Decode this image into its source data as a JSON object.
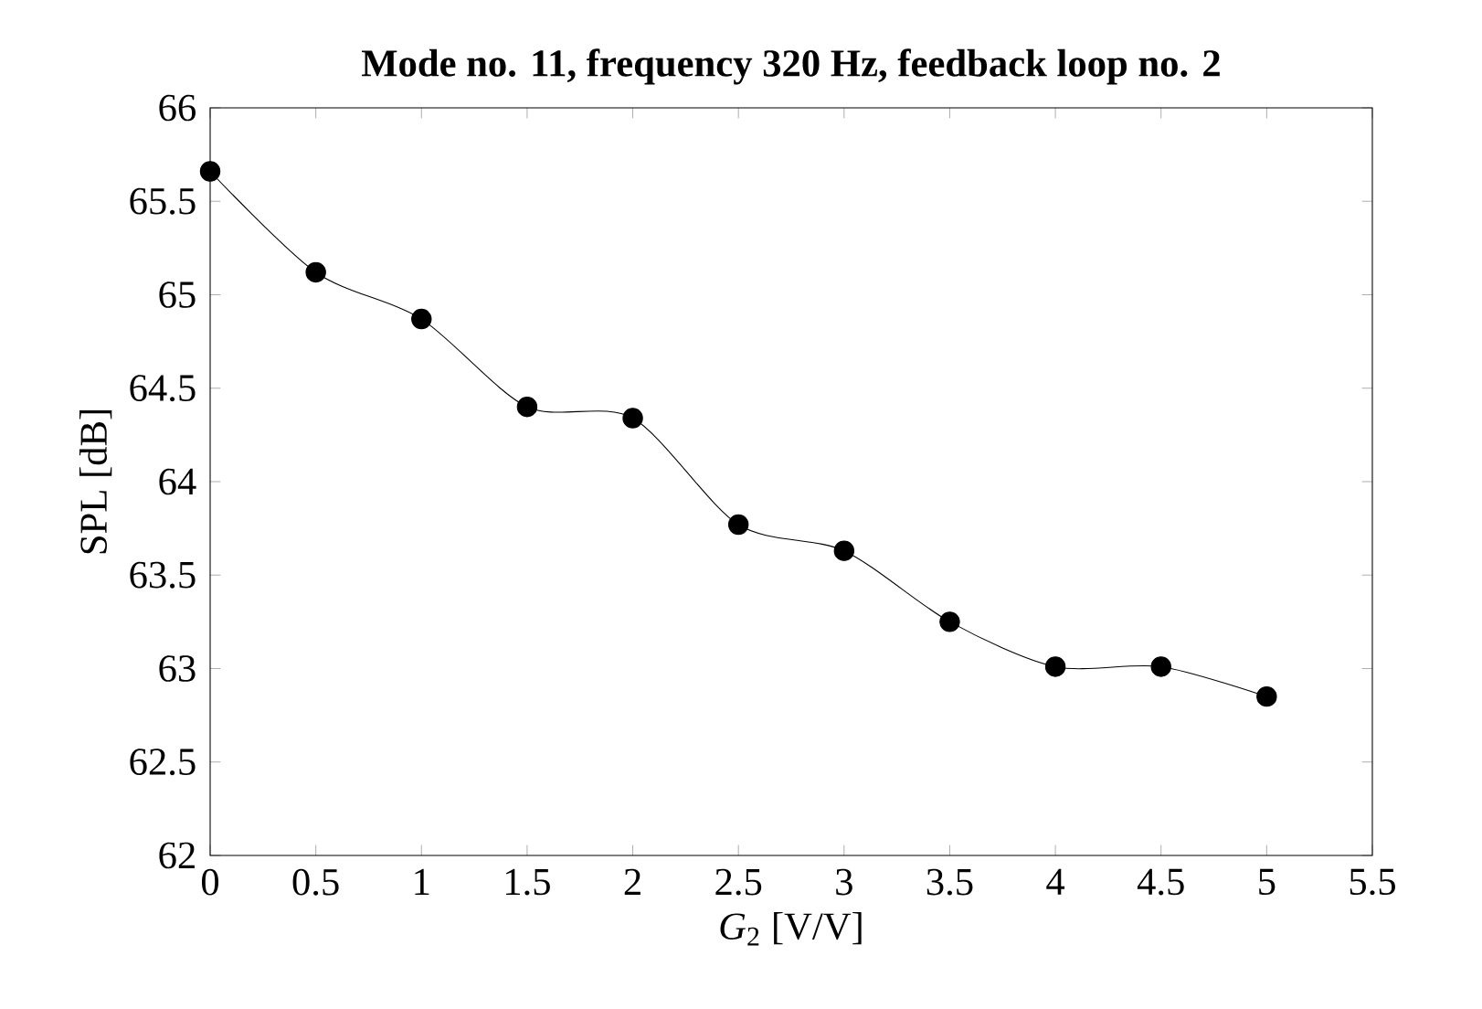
{
  "chart_data": {
    "type": "line",
    "title": "Mode no. 11, frequency 320 Hz, feedback loop no. 2",
    "xlabel": "*G*$_{2}$ [V/V]",
    "ylabel": "SPL [dB]",
    "x": [
      0,
      0.5,
      1,
      1.5,
      2,
      2.5,
      3,
      3.5,
      4,
      4.5,
      5
    ],
    "series": [
      {
        "color": "#000000",
        "values": [
          65.66,
          65.12,
          64.87,
          64.4,
          64.34,
          63.77,
          63.63,
          63.25,
          63.01,
          63.01,
          62.85
        ]
      }
    ],
    "xlim": [
      0,
      5.5
    ],
    "ylim": [
      62,
      66
    ],
    "xticks": [
      0,
      0.5,
      1,
      1.5,
      2,
      2.5,
      3,
      3.5,
      4,
      4.5,
      5,
      5.5
    ],
    "yticks": [
      62,
      62.5,
      63,
      63.5,
      64,
      64.5,
      65,
      65.5,
      66
    ],
    "marker": "circle",
    "line_style": "solid"
  }
}
